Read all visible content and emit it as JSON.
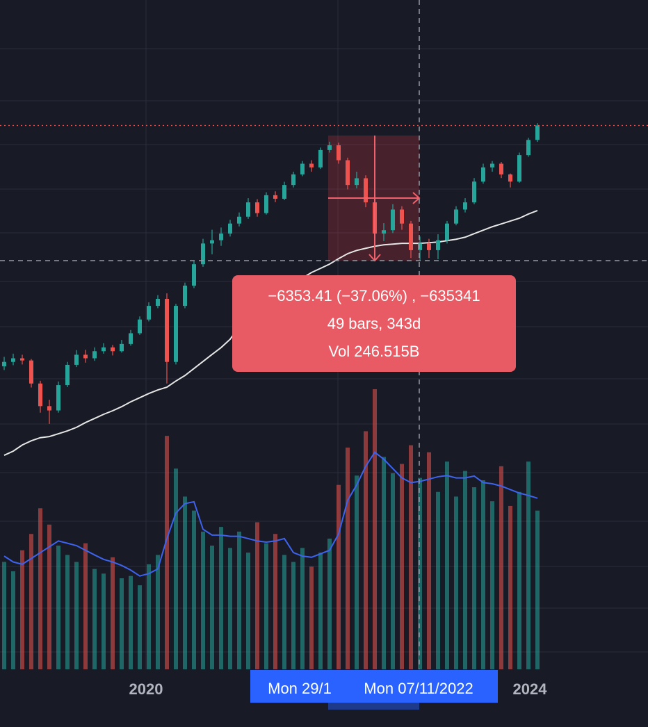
{
  "chart_data": {
    "type": "candlestick",
    "log_scale": true,
    "ylim": [
      5186,
      28313
    ],
    "vlim": [
      0,
      12
    ],
    "up_color": "#26a69a",
    "down_color": "#ef5350",
    "ma_color": "#e6e6e6",
    "volume_ma_color": "#3d63f0",
    "candles": [
      [
        7300,
        7560,
        7200,
        7420
      ],
      [
        7420,
        7650,
        7330,
        7520
      ],
      [
        7520,
        7620,
        7350,
        7460
      ],
      [
        7460,
        7500,
        6750,
        6850
      ],
      [
        6850,
        6920,
        6150,
        6300
      ],
      [
        6300,
        6450,
        5900,
        6200
      ],
      [
        6200,
        6900,
        6150,
        6810
      ],
      [
        6810,
        7420,
        6760,
        7340
      ],
      [
        7340,
        7750,
        7280,
        7620
      ],
      [
        7620,
        7760,
        7400,
        7520
      ],
      [
        7520,
        7830,
        7450,
        7720
      ],
      [
        7720,
        7950,
        7650,
        7830
      ],
      [
        7830,
        7900,
        7600,
        7720
      ],
      [
        7720,
        8050,
        7680,
        7930
      ],
      [
        7930,
        8350,
        7880,
        8250
      ],
      [
        8250,
        8780,
        8200,
        8680
      ],
      [
        8680,
        9250,
        8620,
        9130
      ],
      [
        9130,
        9500,
        9050,
        9370
      ],
      [
        9370,
        9560,
        6850,
        7420
      ],
      [
        7420,
        9200,
        7350,
        9130
      ],
      [
        9130,
        9950,
        9050,
        9840
      ],
      [
        9840,
        10800,
        9750,
        10650
      ],
      [
        10650,
        11700,
        10550,
        11500
      ],
      [
        11500,
        12100,
        11050,
        11640
      ],
      [
        11640,
        12200,
        11400,
        11930
      ],
      [
        11930,
        12550,
        11800,
        12380
      ],
      [
        12380,
        12900,
        12250,
        12700
      ],
      [
        12700,
        13600,
        12600,
        13390
      ],
      [
        13390,
        13550,
        12700,
        12870
      ],
      [
        12870,
        13900,
        12800,
        13750
      ],
      [
        13750,
        13950,
        13400,
        13570
      ],
      [
        13570,
        14450,
        13500,
        14280
      ],
      [
        14280,
        15000,
        14150,
        14850
      ],
      [
        14850,
        15600,
        14750,
        15450
      ],
      [
        15450,
        15650,
        15000,
        15240
      ],
      [
        15240,
        16400,
        15150,
        16250
      ],
      [
        16250,
        16760,
        16100,
        16540
      ],
      [
        16540,
        16700,
        15450,
        15650
      ],
      [
        15650,
        15800,
        14050,
        14280
      ],
      [
        14280,
        15000,
        14100,
        14640
      ],
      [
        14640,
        14800,
        13150,
        13390
      ],
      [
        13390,
        13500,
        11500,
        11930
      ],
      [
        11930,
        12400,
        11600,
        12080
      ],
      [
        12080,
        13300,
        11950,
        13040
      ],
      [
        13040,
        13200,
        12100,
        12380
      ],
      [
        12380,
        12500,
        10900,
        11220
      ],
      [
        11220,
        11800,
        10790,
        11500
      ],
      [
        11500,
        11700,
        10900,
        11220
      ],
      [
        11220,
        11900,
        10850,
        11640
      ],
      [
        11640,
        12500,
        11500,
        12380
      ],
      [
        12380,
        13200,
        12300,
        13040
      ],
      [
        13040,
        13600,
        12900,
        13390
      ],
      [
        13390,
        14650,
        13300,
        14460
      ],
      [
        14460,
        15450,
        14350,
        15240
      ],
      [
        15240,
        15600,
        15000,
        15450
      ],
      [
        15450,
        15550,
        14650,
        14850
      ],
      [
        14850,
        14900,
        14150,
        14460
      ],
      [
        14460,
        16100,
        14400,
        15950
      ],
      [
        15950,
        17000,
        15850,
        16870
      ],
      [
        16870,
        17950,
        16750,
        17800
      ]
    ],
    "ma": [
      5252,
      5333,
      5456,
      5542,
      5606,
      5629,
      5688,
      5748,
      5824,
      5929,
      6019,
      6112,
      6193,
      6288,
      6401,
      6500,
      6601,
      6688,
      6757,
      6913,
      7056,
      7241,
      7432,
      7628,
      7825,
      8069,
      8451,
      8781,
      9128,
      9365,
      9560,
      9735,
      9912,
      10120,
      10329,
      10489,
      10655,
      10873,
      11075,
      11209,
      11297,
      11383,
      11442,
      11474,
      11505,
      11505,
      11505,
      11534,
      11563,
      11621,
      11682,
      11772,
      11927,
      12080,
      12235,
      12364,
      12496,
      12627,
      12824,
      12989
    ],
    "volume": [
      4.6,
      4.2,
      5.1,
      5.8,
      6.9,
      6.2,
      5.3,
      4.9,
      4.6,
      5.4,
      4.3,
      4.1,
      4.8,
      3.9,
      4.0,
      3.6,
      4.5,
      4.9,
      10.0,
      8.6,
      7.4,
      6.8,
      5.9,
      5.3,
      6.1,
      5.2,
      5.9,
      5.0,
      6.3,
      5.4,
      5.8,
      4.9,
      4.6,
      5.2,
      4.4,
      5.0,
      5.6,
      7.9,
      9.5,
      8.3,
      10.2,
      12.0,
      9.1,
      8.4,
      8.8,
      9.6,
      8.2,
      9.3,
      7.6,
      8.9,
      7.4,
      8.5,
      7.8,
      8.1,
      7.2,
      8.7,
      7.0,
      7.6,
      8.9,
      6.8
    ],
    "volume_ma": [
      4.85,
      4.6,
      4.5,
      4.75,
      5.0,
      5.25,
      5.5,
      5.4,
      5.3,
      5.1,
      4.9,
      4.71,
      4.6,
      4.45,
      4.25,
      4.0,
      4.1,
      4.3,
      5.6,
      6.7,
      7.1,
      7.18,
      6.0,
      5.75,
      5.75,
      5.7,
      5.7,
      5.6,
      5.5,
      5.45,
      5.5,
      5.6,
      5.0,
      4.85,
      4.8,
      4.95,
      5.1,
      5.8,
      7.24,
      7.9,
      8.7,
      9.3,
      9.0,
      8.6,
      8.2,
      8.0,
      8.05,
      8.15,
      8.25,
      8.3,
      8.2,
      8.2,
      8.28,
      8.0,
      7.95,
      7.85,
      7.7,
      7.55,
      7.45,
      7.33
    ],
    "measure": [
      "−6353.41 (−37.06%) , −635341",
      "49 bars, 343d",
      "Vol 246.515B"
    ],
    "x_labels": [
      "2020",
      "2024"
    ],
    "range_labels": [
      "Mon 29/1",
      "Mon 07/11/2022"
    ]
  }
}
